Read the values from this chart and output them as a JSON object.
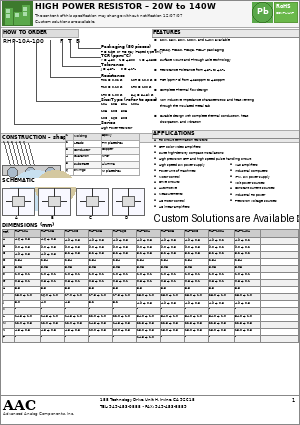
{
  "title": "HIGH POWER RESISTOR – 20W to 140W",
  "subtitle1": "The content of this specification may change without notification 12/07/07",
  "subtitle2": "Custom solutions are available.",
  "part_number": "RHP-10A-100 F T B",
  "how_to_order": "HOW TO ORDER",
  "pkg_label": "Packaging (50 pieces)",
  "pkg_desc": "T = tube  or  R= tray (Taped type only)",
  "tcr_label": "TCR (ppm/°C)",
  "tcr_desc": "Y = ±50    Z = ±500    N = ±250",
  "tol_label": "Tolerance",
  "tol_desc": "J = ±5%      F = ±1%",
  "res_label": "Resistance",
  "res_lines": [
    "R02 = 0.02 Ω         10R = 10.0 Ω",
    "R10 = 0.10 Ω         1R0 = 100 Ω",
    "1R0 = 1.00 Ω         84J = 84.3k Ω"
  ],
  "size_label": "Size/Type (refer to spec)",
  "size_rows": [
    "10A    20B    50A    100A",
    "10B    20C    50B",
    "10C    26D    50C"
  ],
  "series_label": "Series",
  "series_desc": "High Power Resistor",
  "construction_title": "CONSTRUCTION – shape X and A",
  "ctor_rows": [
    [
      "1",
      "Molding",
      "Epoxy"
    ],
    [
      "2",
      "Leads",
      "Tin plated-Cu"
    ],
    [
      "3",
      "Conductor",
      "Copper"
    ],
    [
      "4",
      "Guaranon",
      "Ni-Cr"
    ],
    [
      "5",
      "Substrate",
      "Alumina"
    ],
    [
      "6",
      "Fixings",
      "Ni plated-Cu"
    ]
  ],
  "schematic_label": "SCHEMATIC",
  "features_title": "FEATURES",
  "features": [
    "20W, 25W, 50W, 100W, and 140W available",
    "TO126, TO220, TO263, TO247 packaging",
    "Surface Mount and Through Hole technology",
    "Resistance Tolerance from ±5% to ±1%",
    "TCR (ppm/°C) from ±250ppm to ±50ppm",
    "Complete Thermal flow design",
    "Non Inductive impedance characteristics and heat venting\nthrough the insulated metal tab",
    "Durable design with complete thermal conduction, heat\ndissipation, and vibration"
  ],
  "applications_title": "APPLICATIONS",
  "apps_left": [
    "RF circuit termination resistors",
    "CRT color video amplifiers",
    "Suite high-density compact installations",
    "High precision CRT and high speed pulse handling circuit",
    "High speed SW power supply",
    "Power unit of machines",
    "Motor control",
    "Drive circuits",
    "Automotive",
    "Measurements",
    "AC motor control",
    "AC linear amplifiers"
  ],
  "apps_right": [
    "VHF amplifiers",
    "Industrial computers",
    "IPM, SW power supply",
    "Volt power sources",
    "Constant current sources",
    "Industrial RF power",
    "Precision voltage sources"
  ],
  "custom_note": "Custom Solutions are Available – for more information, send",
  "dimensions_title": "DIMENSIONS (mm)",
  "dim_cols": [
    "Ref.",
    "RHP-10A",
    "RHP-10B",
    "RHP-10C",
    "RHP-20B",
    "RHP-26D",
    "RHP-50A",
    "RHP-50B",
    "RHP-50C",
    "RHP-100A",
    "RHP-140A"
  ],
  "dim_rows": [
    [
      "A",
      "4.6 ± 0.3",
      "4.6 ± 0.3",
      "4.9 ± 0.5",
      "4.9 ± 0.5",
      "4.9 ± 0.5",
      "4.9 ± 0.3",
      "4.9 ± 0.3",
      "4.9 ± 0.3",
      "4.9 ± 0.2",
      "4.9 ± 0.2"
    ],
    [
      "B",
      "9.0 ± 0.5",
      "9.0 ± 0.5",
      "9.0 ± 0.5",
      "9.0 ± 0.5",
      "9.0 ± 0.5",
      "9.0 ± 0.5",
      "9.0 ± 0.5",
      "9.0 ± 0.5",
      "9.0 ± 0.2",
      "9.0 ± 0.2"
    ],
    [
      "C",
      "4.9 ± 0.5",
      "4.9 ± 0.5",
      "5.2 ± 0.5",
      "5.2 ± 0.5",
      "5.2 ± 0.5",
      "5.2 ± 0.3",
      "5.2 ± 0.3",
      "5.2 ± 0.3",
      "5.2 ± 0.2",
      "5.2 ± 0.2"
    ],
    [
      "D",
      "2.54",
      "2.54",
      "2.54",
      "2.54",
      "2.54",
      "2.54",
      "2.54",
      "2.54",
      "2.54",
      "2.54"
    ],
    [
      "E",
      "5.08",
      "5.08",
      "5.08",
      "5.08",
      "5.08",
      "5.08",
      "5.08",
      "5.08",
      "5.08",
      "5.08"
    ],
    [
      "F",
      "1.0 ± 0.1",
      "1.0 ± 0.1",
      "1.0 ± 0.1",
      "1.0 ± 0.1",
      "1.0 ± 0.1",
      "1.0 ± 0.1",
      "1.0 ± 0.1",
      "1.0 ± 0.1",
      "1.0 ± 0.1",
      "1.0 ± 0.1"
    ],
    [
      "G",
      "0.8 ± 0.1",
      "0.8 ± 0.1",
      "0.8 ± 0.1",
      "0.8 ± 0.1",
      "0.8 ± 0.1",
      "0.8 ± 0.1",
      "0.8 ± 0.1",
      "0.8 ± 0.1",
      "0.8 ± 0.1",
      "0.8 ± 0.1"
    ],
    [
      "H",
      "3.5",
      "3.5",
      "3.5",
      "3.5",
      "3.5",
      "3.5",
      "3.5",
      "3.5",
      "3.5",
      "3.5"
    ],
    [
      "I",
      "13.0 ± 1.0",
      "16.0 ± 1.0",
      "17.0 ± 1.0",
      "17.5 ± 1.0",
      "17.5 ± 1.0",
      "28.0 ± 1.0",
      "28.0 ± 1.0",
      "28.0 ± 1.0",
      "28.0 ± 1.0",
      "28.0 ± 1.0"
    ],
    [
      "J",
      "3.0",
      "4.0",
      "4.5",
      "3.2",
      "3.2",
      "4.9 ± 0.5",
      "4.9 ± 0.5",
      "4.9 ± 0.5",
      "4.9 ± 0.5",
      "4.9 ± 0.5"
    ],
    [
      "K",
      "-",
      "-",
      "-",
      "-",
      "-",
      "-",
      "-",
      "-",
      "-",
      "-"
    ],
    [
      "L",
      "14.5 ± 1.0",
      "14.5 ± 1.0",
      "14.5 ± 1.0",
      "22.0 ± 1.0",
      "22.0 ± 1.0",
      "34.0 ± 1.0",
      "34.0 ± 1.0",
      "34.0 ± 1.0",
      "34.0 ± 1.0",
      "34.0 ± 1.0"
    ],
    [
      "M",
      "12.0 ± 0.5",
      "12.0 ± 0.5",
      "12.0 ± 0.5",
      "14.5 ± 0.5",
      "14.5 ± 0.5",
      "22.5 ± 0.5",
      "22.5 ± 0.5",
      "22.5 ± 0.5",
      "22.5 ± 0.5",
      "22.5 ± 0.5"
    ],
    [
      "N",
      "4.5 ± 0.3",
      "4.5 ± 0.3",
      "4.5 ± 0.3",
      "10.0 ± 0.5",
      "10.0 ± 0.5",
      "15.0 ± 0.5",
      "15.0 ± 0.5",
      "15.0 ± 0.5",
      "15.0 ± 0.5",
      "15.0 ± 0.5"
    ],
    [
      "P",
      "-",
      "-",
      "-",
      "-",
      "-",
      "14.5 ± 1.0",
      "-",
      "-",
      "-",
      "-"
    ]
  ],
  "footer_address": "188 Technology Drive, Unit H, Irvine, CA 92618",
  "footer_tel": "TEL: 949-453-0888 • FAX: 949-453-8889",
  "footer_page": "1",
  "bg": "#ffffff",
  "hdr_bg": "#f2f2f2",
  "section_bg": "#e0e0e0",
  "green": "#4a7a3a",
  "pb_green": "#5a9a3a"
}
